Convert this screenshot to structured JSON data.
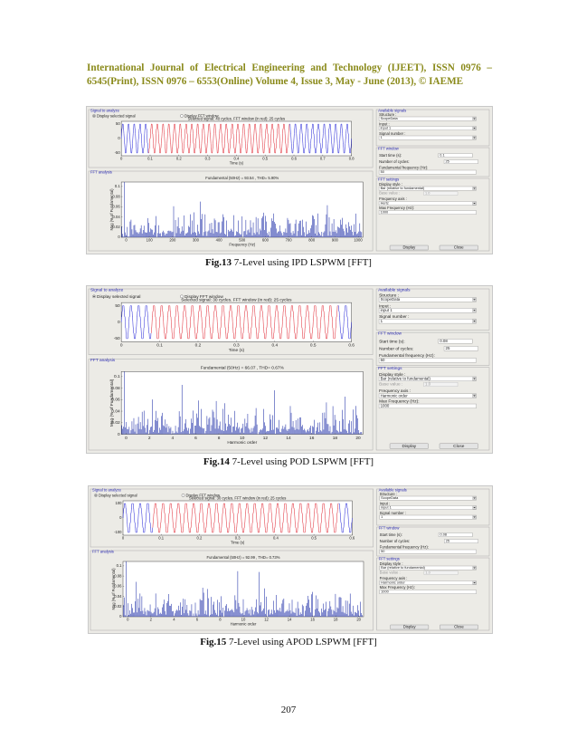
{
  "header": {
    "line1": "International Journal of Electrical Engineering and Technology (IJEET), ISSN 0976 –",
    "line2": "6545(Print), ISSN 0976 – 6553(Online) Volume 4, Issue 3, May - June (2013), © IAEME"
  },
  "page_number": "207",
  "colors": {
    "header": "#8a8a1a",
    "signal_blue": "#1f1fd6",
    "signal_red": "#e0202c",
    "spectrum": "#1e2ea8",
    "panel": "#ecebe6"
  },
  "figures": [
    {
      "caption_label": "Fig.13",
      "caption_text": " 7-Level using IPD LSPWM [FFT]",
      "ui": {
        "signal_title": "Signal to analyze",
        "display_selected": "Display selected signal",
        "display_fft": "Display FFT window",
        "signal_info": "Selected signal: 40 cycles. FFT window (in red): 25 cycles",
        "fft_title": "FFT analysis",
        "fundamental": "Fundamental (50Hz) = 93.54 , THD= 5.90%",
        "ylabel": "Mag (% of Fundamental)",
        "xlabel_signal": "Time (s)",
        "xlabel_fft": "Frequency (Hz)",
        "avail_title": "Available signals",
        "structure_label": "Structure :",
        "structure_value": "ScopeData",
        "input_label": "Input :",
        "input_value": "input 1",
        "signal_number_label": "Signal number :",
        "signal_number_value": "1",
        "fftwin_title": "FFT window",
        "start_time_label": "Start time (s):",
        "start_time_value": "0.1",
        "cycles_label": "Number of cycles:",
        "cycles_value": "25",
        "fund_freq_label": "Fundamental frequency (Hz):",
        "fund_freq_value": "50",
        "settings_title": "FFT settings",
        "display_style_label": "Display style :",
        "display_style_value": "Bar (relative to fundamental)",
        "base_value_label": "Base value :",
        "base_value_value": "1.0",
        "freq_axis_label": "Frequency axis :",
        "freq_axis_value": "Hertz",
        "max_freq_label": "Max Frequency (Hz):",
        "max_freq_value": "1000",
        "display_btn": "Display",
        "close_btn": "Close",
        "sig_yticks": [
          "50",
          "0",
          "-50"
        ],
        "sig_xticks": [
          "0",
          "0.1",
          "0.2",
          "0.3",
          "0.4",
          "0.5",
          "0.6",
          "0.7",
          "0.8"
        ],
        "fft_yticks": [
          "0.1",
          "0.08",
          "0.06",
          "0.04",
          "0.02",
          "0"
        ],
        "fft_xticks": [
          "0",
          "100",
          "200",
          "300",
          "400",
          "500",
          "600",
          "700",
          "800",
          "900",
          "1000"
        ]
      }
    },
    {
      "caption_label": "Fig.14",
      "caption_text": " 7-Level using POD LSPWM [FFT]",
      "ui": {
        "signal_title": "Signal to analyze",
        "display_selected": "Display selected signal",
        "display_fft": "Display FFT window",
        "signal_info": "Selected signal: 30 cycles. FFT window (in red): 25 cycles",
        "fft_title": "FFT analysis",
        "fundamental": "Fundamental (50Hz) = 66.07 , THD= 0.67%",
        "ylabel": "Mag (% of Fundamental)",
        "xlabel_signal": "Time (s)",
        "xlabel_fft": "Harmonic order",
        "avail_title": "Available signals",
        "structure_label": "Structure :",
        "structure_value": "ScopeData",
        "input_label": "Input :",
        "input_value": "input 1",
        "signal_number_label": "Signal number :",
        "signal_number_value": "1",
        "fftwin_title": "FFT window",
        "start_time_label": "Start time (s):",
        "start_time_value": "0.08",
        "cycles_label": "Number of cycles:",
        "cycles_value": "25",
        "fund_freq_label": "Fundamental frequency (Hz):",
        "fund_freq_value": "50",
        "settings_title": "FFT settings",
        "display_style_label": "Display style :",
        "display_style_value": "Bar (relative to fundamental)",
        "base_value_label": "Base value :",
        "base_value_value": "1.0",
        "freq_axis_label": "Frequency axis :",
        "freq_axis_value": "Harmonic order",
        "max_freq_label": "Max Frequency (Hz):",
        "max_freq_value": "1000",
        "display_btn": "Display",
        "close_btn": "Close",
        "sig_yticks": [
          "50",
          "0",
          "-50"
        ],
        "sig_xticks": [
          "0",
          "0.1",
          "0.2",
          "0.3",
          "0.4",
          "0.5",
          "0.6"
        ],
        "fft_yticks": [
          "0.1",
          "0.08",
          "0.06",
          "0.04",
          "0.02",
          "0"
        ],
        "fft_xticks": [
          "0",
          "2",
          "4",
          "6",
          "8",
          "10",
          "12",
          "14",
          "16",
          "18",
          "20"
        ]
      }
    },
    {
      "caption_label": "Fig.15",
      "caption_text": " 7-Level using APOD LSPWM [FFT]",
      "ui": {
        "signal_title": "Signal to analyze",
        "display_selected": "Display selected signal",
        "display_fft": "Display FFT window",
        "signal_info": "Selected signal: 30 cycles. FFT window (in red): 25 cycles",
        "fft_title": "FFT analysis",
        "fundamental": "Fundamental (50Hz) = 92.99 , THD= 0.73%",
        "ylabel": "Mag (% of Fundamental)",
        "xlabel_signal": "Time (s)",
        "xlabel_fft": "Harmonic order",
        "avail_title": "Available signals",
        "structure_label": "Structure :",
        "structure_value": "ScopeData",
        "input_label": "Input :",
        "input_value": "input 1",
        "signal_number_label": "Signal number :",
        "signal_number_value": "1",
        "fftwin_title": "FFT window",
        "start_time_label": "Start time (s):",
        "start_time_value": "0.08",
        "cycles_label": "Number of cycles:",
        "cycles_value": "25",
        "fund_freq_label": "Fundamental frequency (Hz):",
        "fund_freq_value": "50",
        "settings_title": "FFT settings",
        "display_style_label": "Display style :",
        "display_style_value": "Bar (relative to fundamental)",
        "base_value_label": "Base value :",
        "base_value_value": "1.0",
        "freq_axis_label": "Frequency axis :",
        "freq_axis_value": "Harmonic order",
        "max_freq_label": "Max Frequency (Hz):",
        "max_freq_value": "1000",
        "display_btn": "Display",
        "close_btn": "Close",
        "sig_yticks": [
          "100",
          "0",
          "-100"
        ],
        "sig_xticks": [
          "0",
          "0.1",
          "0.2",
          "0.3",
          "0.4",
          "0.5",
          "0.6"
        ],
        "fft_yticks": [
          "0.1",
          "0.08",
          "0.06",
          "0.04",
          "0.02",
          "0"
        ],
        "fft_xticks": [
          "0",
          "2",
          "4",
          "6",
          "8",
          "10",
          "12",
          "14",
          "16",
          "18",
          "20"
        ]
      }
    }
  ]
}
